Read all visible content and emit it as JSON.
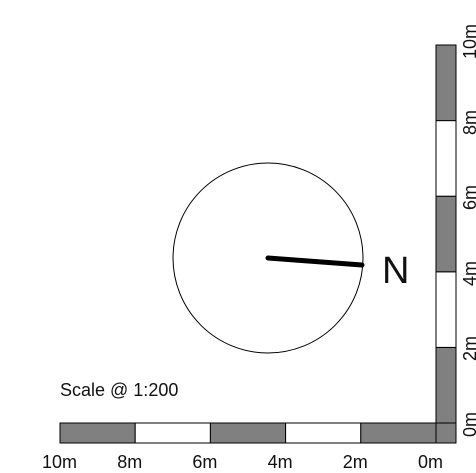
{
  "scale_label": "Scale @ 1:200",
  "north_label": "N",
  "horizontal_scale": {
    "labels": [
      "10m",
      "8m",
      "6m",
      "4m",
      "2m",
      "0m"
    ]
  },
  "vertical_scale": {
    "labels": [
      "0m",
      "2m",
      "4m",
      "6m",
      "8m",
      "10m"
    ]
  },
  "colors": {
    "segment_dark": "#808080",
    "segment_light": "#ffffff",
    "stroke": "#000000"
  },
  "compass": {
    "shape": "circle",
    "needle_direction": "east"
  }
}
